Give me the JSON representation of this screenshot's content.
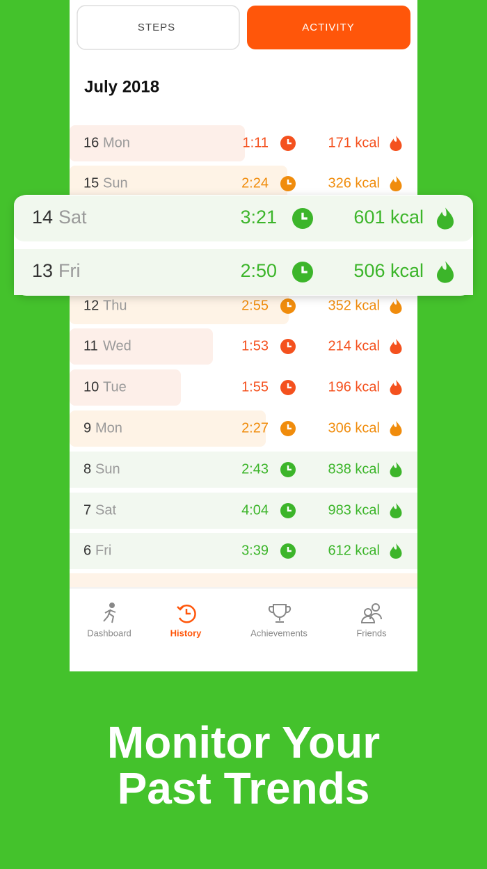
{
  "tabs": [
    "STEPS",
    "ACTIVITY"
  ],
  "month": "July 2018",
  "rows": [
    {
      "day": "16",
      "weekday": "Mon",
      "time": "1:11",
      "kcal": "171 kcal",
      "color": "#f4511e"
    },
    {
      "day": "15",
      "weekday": "Sun",
      "time": "2:24",
      "kcal": "326 kcal",
      "color": "#f08c0c"
    },
    {
      "day": "12",
      "weekday": "Thu",
      "time": "2:55",
      "kcal": "352 kcal",
      "color": "#f08c0c"
    },
    {
      "day": "11",
      "weekday": "Wed",
      "time": "1:53",
      "kcal": "214 kcal",
      "color": "#f4511e"
    },
    {
      "day": "10",
      "weekday": "Tue",
      "time": "1:55",
      "kcal": "196 kcal",
      "color": "#f4511e"
    },
    {
      "day": "9",
      "weekday": "Mon",
      "time": "2:27",
      "kcal": "306 kcal",
      "color": "#f08c0c"
    },
    {
      "day": "8",
      "weekday": "Sun",
      "time": "2:43",
      "kcal": "838 kcal",
      "color": "#3cb52a"
    },
    {
      "day": "7",
      "weekday": "Sat",
      "time": "4:04",
      "kcal": "983 kcal",
      "color": "#3cb52a"
    },
    {
      "day": "6",
      "weekday": "Fri",
      "time": "3:39",
      "kcal": "612 kcal",
      "color": "#3cb52a"
    }
  ],
  "highlighted": [
    {
      "day": "14",
      "weekday": "Sat",
      "time": "3:21",
      "kcal": "601 kcal",
      "color": "#3cb52a"
    },
    {
      "day": "13",
      "weekday": "Fri",
      "time": "2:50",
      "kcal": "506 kcal",
      "color": "#3cb52a"
    }
  ],
  "nav": [
    "Dashboard",
    "History",
    "Achievements",
    "Friends"
  ],
  "tagline": [
    "Monitor Your",
    "Past Trends"
  ]
}
